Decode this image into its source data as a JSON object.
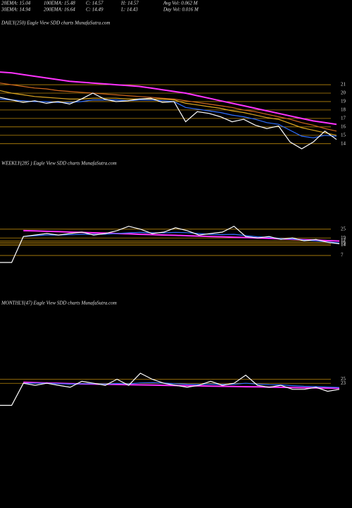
{
  "header": {
    "stats": [
      [
        "20EMA: 15.04",
        "100EMA: 15.48",
        "C: 14.57",
        "H: 14.57",
        "Avg Vol: 0.062  M"
      ],
      [
        "30EMA: 14.94",
        "200EMA: 16.64",
        "C: 14.49",
        "L: 14.43",
        "Day Vol: 0.016  M"
      ]
    ]
  },
  "chart_data": [
    {
      "type": "line",
      "title": "DAILY(250) Eagle  View  SDD charts MunafaSutra.com",
      "ylim": [
        11.8,
        27.7
      ],
      "yticks": [
        21,
        20,
        19,
        18,
        17,
        16,
        15,
        14
      ],
      "grid": true,
      "grid_color": "#b8860b",
      "series": [
        {
          "color": "#d2691e",
          "values": [
            21.2,
            21.0,
            20.8,
            20.6,
            20.5,
            20.3,
            20.2,
            20.1,
            20.0,
            19.9,
            19.8,
            19.7,
            19.6,
            19.5,
            19.4,
            19.3,
            19.1,
            18.9,
            18.7,
            18.5,
            18.3,
            18.0,
            17.8,
            17.5,
            17.2,
            16.9,
            16.5,
            16.2,
            15.8,
            15.5
          ]
        },
        {
          "color": "#daa520",
          "values": [
            20.3,
            20.0,
            19.8,
            19.6,
            19.5,
            19.4,
            19.3,
            19.3,
            19.4,
            19.4,
            19.4,
            19.3,
            19.3,
            19.3,
            19.3,
            19.2,
            18.8,
            18.6,
            18.4,
            18.2,
            17.9,
            17.7,
            17.4,
            17.1,
            16.9,
            16.4,
            15.9,
            15.6,
            15.3,
            15.0
          ]
        },
        {
          "color": "#ff33ff",
          "values": [
            22.5,
            22.4,
            22.2,
            22.0,
            21.8,
            21.6,
            21.4,
            21.3,
            21.2,
            21.1,
            21.0,
            20.9,
            20.8,
            20.6,
            20.4,
            20.2,
            20.0,
            19.7,
            19.4,
            19.1,
            18.8,
            18.5,
            18.2,
            17.9,
            17.6,
            17.3,
            17.0,
            16.7,
            16.5,
            16.3
          ]
        },
        {
          "color": "#2f6fff",
          "values": [
            19.3,
            19.2,
            19.1,
            19.0,
            19.0,
            18.9,
            18.9,
            19.0,
            19.2,
            19.2,
            19.2,
            19.1,
            19.2,
            19.2,
            19.1,
            19.0,
            18.3,
            18.1,
            17.9,
            17.7,
            17.4,
            17.2,
            16.9,
            16.5,
            16.3,
            15.6,
            14.9,
            14.7,
            15.0,
            14.9
          ]
        },
        {
          "color": "#ffffff",
          "values": [
            19.5,
            19.2,
            18.9,
            19.1,
            18.8,
            19.0,
            18.7,
            19.3,
            20.0,
            19.3,
            19.0,
            19.1,
            19.3,
            19.4,
            18.9,
            19.0,
            16.6,
            17.8,
            17.6,
            17.2,
            16.6,
            16.9,
            16.2,
            15.8,
            16.1,
            14.2,
            13.4,
            14.2,
            15.5,
            14.5
          ]
        }
      ]
    },
    {
      "type": "line",
      "title": "WEEKLY(285                ) Eagle  View  SDD charts MunafaSutra.com",
      "ylim": [
        -21,
        66
      ],
      "yticks": [
        25,
        19,
        17,
        16,
        15,
        14,
        7
      ],
      "grid": true,
      "grid_color": "#b8860b",
      "series": [
        {
          "color": "#ff33ff",
          "values": [
            null,
            null,
            24,
            23.8,
            23.5,
            23.3,
            23,
            22.8,
            22.5,
            22.3,
            22,
            21.8,
            21.5,
            21.3,
            21,
            20.8,
            20.5,
            20.3,
            20,
            19.8,
            19.5,
            19.3,
            19,
            18.7,
            18.4,
            18.1,
            17.8,
            17.5,
            17.2,
            16.9
          ]
        },
        {
          "color": "#2f6fff",
          "values": [
            null,
            null,
            20,
            20.5,
            21,
            21,
            21.2,
            21.5,
            21.5,
            21.6,
            22,
            22.5,
            22.8,
            22.5,
            22.5,
            22.8,
            22.6,
            22,
            21.5,
            21.3,
            21.5,
            20.6,
            19.8,
            19.4,
            18.6,
            18.3,
            17.5,
            17.0,
            16.3,
            15.6
          ]
        },
        {
          "color": "#ffffff",
          "values": [
            2.2,
            2.2,
            20,
            21,
            22,
            21,
            22,
            23,
            21,
            22,
            24,
            27,
            25,
            22,
            23,
            26,
            24,
            21,
            22,
            23,
            27,
            20,
            19,
            20,
            18,
            19,
            17,
            18,
            16,
            15
          ]
        }
      ]
    },
    {
      "type": "line",
      "title": "MONTHLY(47) Eagle  View  SDD charts MunafaSutra.com",
      "ylim": [
        -4,
        59.3
      ],
      "yticks": [
        25,
        23
      ],
      "grid": true,
      "grid_color": "#b8860b",
      "series": [
        {
          "color": "#ff33ff",
          "values": [
            null,
            null,
            23.5,
            23.3,
            23.1,
            23,
            22.8,
            22.7,
            22.6,
            22.5,
            22.4,
            22.3,
            22.2,
            22.1,
            22,
            21.9,
            21.8,
            21.7,
            21.6,
            21.5,
            21.4,
            21.3,
            21.2,
            21.1,
            21,
            20.9,
            20.8,
            20.7,
            20.6,
            20.5
          ]
        },
        {
          "color": "#2f6fff",
          "values": [
            null,
            null,
            23,
            23,
            23,
            22.8,
            22.6,
            22.8,
            22.8,
            22.6,
            22.9,
            22.7,
            23.2,
            23.3,
            23.1,
            22.8,
            22.5,
            22.4,
            22.6,
            22.4,
            22.5,
            23,
            22.6,
            22.3,
            22.2,
            21.8,
            21.5,
            21.4,
            21.1,
            20.9
          ]
        },
        {
          "color": "#ffffff",
          "values": [
            12,
            12,
            23,
            22,
            23,
            22,
            21,
            24,
            23,
            22,
            25,
            22,
            28,
            25,
            23,
            22,
            21,
            22,
            24,
            22,
            23,
            27,
            22,
            21,
            22,
            20,
            20,
            21,
            19,
            20
          ]
        }
      ]
    }
  ]
}
